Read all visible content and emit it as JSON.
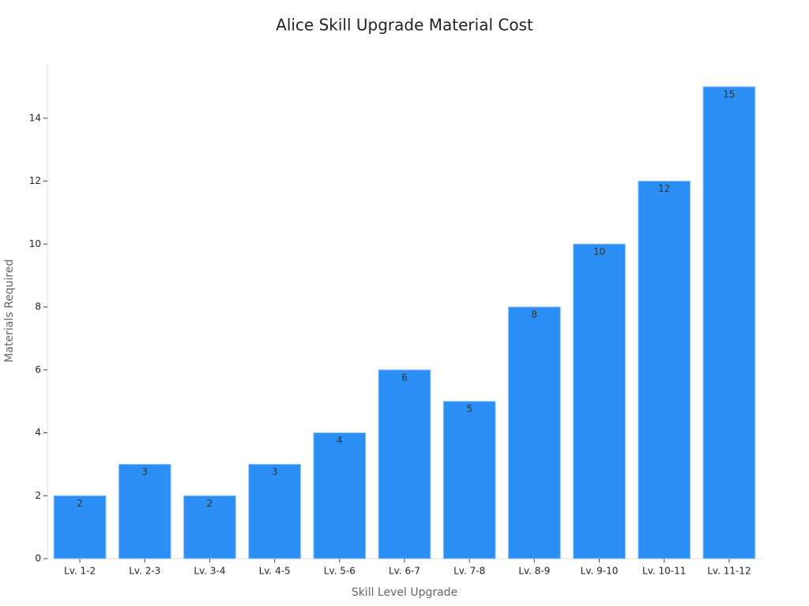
{
  "chart_data": {
    "type": "bar",
    "title": "Alice Skill Upgrade Material Cost",
    "x_label": "Skill Level Upgrade",
    "y_label": "Materials Required",
    "categories": [
      "Lv. 1-2",
      "Lv. 2-3",
      "Lv. 3-4",
      "Lv. 4-5",
      "Lv. 5-6",
      "Lv. 6-7",
      "Lv. 7-8",
      "Lv. 8-9",
      "Lv. 9-10",
      "Lv. 10-11",
      "Lv. 11-12"
    ],
    "values": [
      2,
      3,
      2,
      3,
      4,
      6,
      5,
      8,
      10,
      12,
      15
    ],
    "color": "#2b8ff5",
    "ylim": [
      0,
      15.75
    ],
    "yticks": [
      0,
      2,
      4,
      6,
      8,
      10,
      12,
      14
    ]
  }
}
